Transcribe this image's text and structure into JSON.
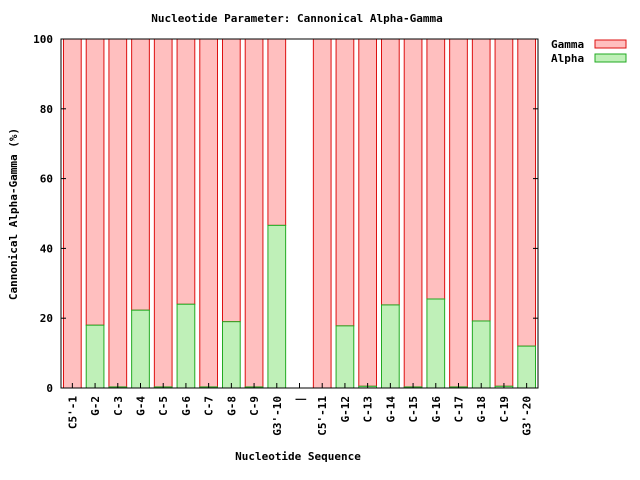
{
  "chart_data": {
    "type": "bar",
    "stacked": true,
    "title": "Nucleotide Parameter: Cannonical Alpha-Gamma",
    "xlabel": "Nucleotide Sequence",
    "ylabel": "Cannonical Alpha-Gamma (%)",
    "ylim": [
      0,
      100
    ],
    "yticks": [
      0,
      20,
      40,
      60,
      80,
      100
    ],
    "grid": false,
    "legend_position": "outside-top-right",
    "categories": [
      "C5'-1",
      "G-2",
      "C-3",
      "G-4",
      "C-5",
      "G-6",
      "C-7",
      "G-8",
      "C-9",
      "G3'-10",
      "|",
      "C5'-11",
      "G-12",
      "C-13",
      "G-14",
      "C-15",
      "G-16",
      "C-17",
      "G-18",
      "C-19",
      "G3'-20"
    ],
    "series": [
      {
        "name": "Alpha",
        "color": "#bff0b8",
        "stroke": "#22aa22",
        "values": [
          0,
          18,
          0.3,
          22.3,
          0.3,
          24,
          0.3,
          19,
          0.3,
          46.6,
          null,
          0,
          17.8,
          0.5,
          23.8,
          0.3,
          25.5,
          0.3,
          19.2,
          0.5,
          12
        ]
      },
      {
        "name": "Gamma",
        "color": "#ffbfbf",
        "stroke": "#dd1111",
        "values": [
          100,
          82,
          99.7,
          77.7,
          99.7,
          76,
          99.7,
          81,
          99.7,
          53.4,
          null,
          100,
          82.2,
          99.5,
          76.2,
          99.7,
          74.5,
          99.7,
          80.8,
          99.5,
          88
        ]
      }
    ]
  }
}
